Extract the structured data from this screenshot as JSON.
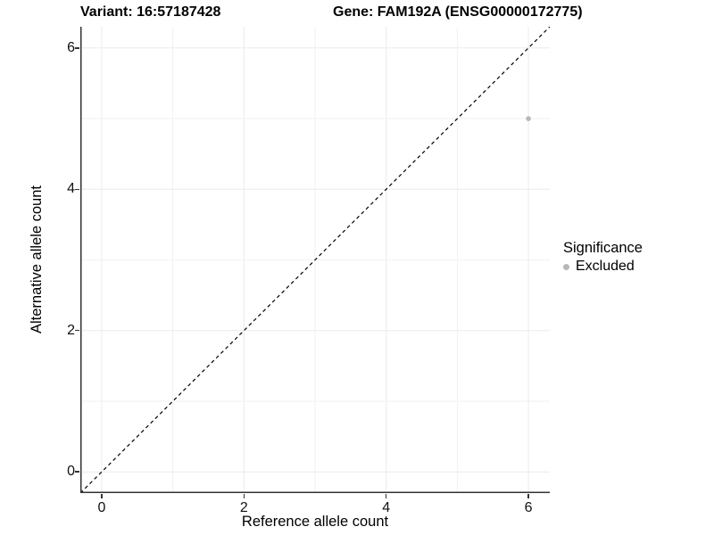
{
  "titles": {
    "variant": "Variant: 16:57187428",
    "gene": "Gene: FAM192A (ENSG00000172775)"
  },
  "legend": {
    "title": "Significance",
    "items": [
      {
        "label": "Excluded",
        "color": "#b8b8b8"
      }
    ]
  },
  "chart_data": {
    "type": "scatter",
    "xlabel": "Reference allele count",
    "ylabel": "Alternative allele count",
    "xlim": [
      -0.3,
      6.3
    ],
    "ylim": [
      -0.3,
      6.3
    ],
    "x_ticks": [
      0,
      2,
      4,
      6
    ],
    "y_ticks": [
      0,
      2,
      4,
      6
    ],
    "minor_x": [
      1,
      3,
      5
    ],
    "minor_y": [
      1,
      3,
      5
    ],
    "grid": true,
    "legend_position": "right",
    "series": [
      {
        "name": "Excluded",
        "color": "#b8b8b8",
        "points": [
          {
            "x": 6,
            "y": 5
          }
        ]
      }
    ],
    "reference_line": {
      "type": "identity",
      "line_style": "dashed",
      "color": "#000000"
    },
    "colors": {
      "grid_major": "#ebebeb",
      "grid_minor": "#f2f2f2",
      "axis_line": "#333333",
      "background": "#ffffff"
    }
  }
}
